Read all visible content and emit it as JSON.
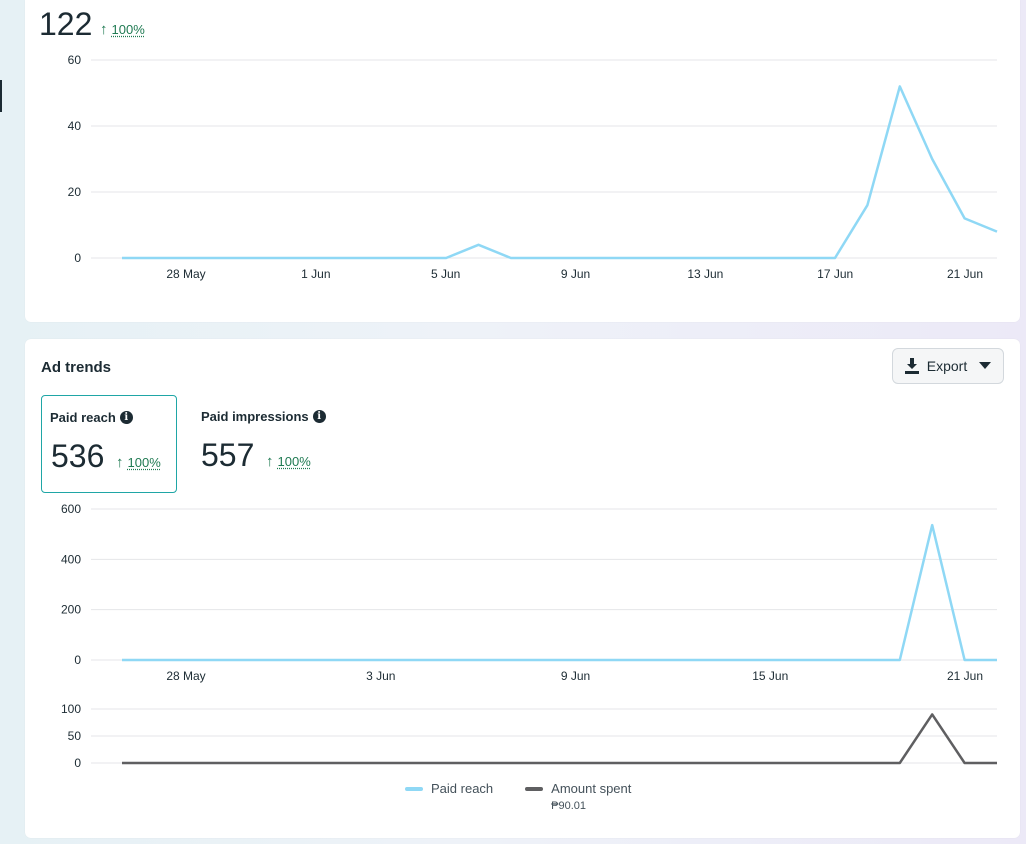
{
  "top_card": {
    "total": "122",
    "delta_pct": "100%"
  },
  "ad_trends": {
    "title": "Ad trends",
    "export_label": "Export",
    "metrics": [
      {
        "label": "Paid reach",
        "value": "536",
        "delta_pct": "100%",
        "selected": true
      },
      {
        "label": "Paid impressions",
        "value": "557",
        "delta_pct": "100%",
        "selected": false
      }
    ],
    "legend": [
      {
        "label": "Paid reach",
        "sub": "",
        "color": "#8fd8f5"
      },
      {
        "label": "Amount spent",
        "sub": "₱90.01",
        "color": "#5f5f61"
      }
    ]
  },
  "chart_data": [
    {
      "type": "line",
      "x_labels": [
        "28 May",
        "1 Jun",
        "5 Jun",
        "9 Jun",
        "13 Jun",
        "17 Jun",
        "21 Jun"
      ],
      "ylim": [
        0,
        60
      ],
      "y_ticks": [
        0,
        20,
        40,
        60
      ],
      "grid": true,
      "series": [
        {
          "color": "#8fd8f5",
          "values": [
            0,
            0,
            0,
            0,
            0,
            0,
            0,
            0,
            0,
            0,
            0,
            4,
            0,
            0,
            0,
            0,
            0,
            0,
            0,
            0,
            0,
            0,
            0,
            16,
            52,
            30,
            12,
            8
          ]
        }
      ]
    },
    {
      "type": "line",
      "x_labels": [
        "28 May",
        "3 Jun",
        "9 Jun",
        "15 Jun",
        "21 Jun"
      ],
      "ylim": [
        0,
        600
      ],
      "y_ticks": [
        0,
        200,
        400,
        600
      ],
      "grid": true,
      "series": [
        {
          "name": "Paid reach",
          "color": "#8fd8f5",
          "values": [
            0,
            0,
            0,
            0,
            0,
            0,
            0,
            0,
            0,
            0,
            0,
            0,
            0,
            0,
            0,
            0,
            0,
            0,
            0,
            0,
            0,
            0,
            0,
            0,
            0,
            536,
            0,
            0
          ]
        }
      ]
    },
    {
      "type": "line",
      "ylim": [
        0,
        100
      ],
      "y_ticks": [
        0,
        50,
        100
      ],
      "grid": true,
      "series": [
        {
          "name": "Amount spent",
          "color": "#5f5f61",
          "values": [
            0,
            0,
            0,
            0,
            0,
            0,
            0,
            0,
            0,
            0,
            0,
            0,
            0,
            0,
            0,
            0,
            0,
            0,
            0,
            0,
            0,
            0,
            0,
            0,
            0,
            90.01,
            0,
            0
          ]
        }
      ]
    }
  ]
}
